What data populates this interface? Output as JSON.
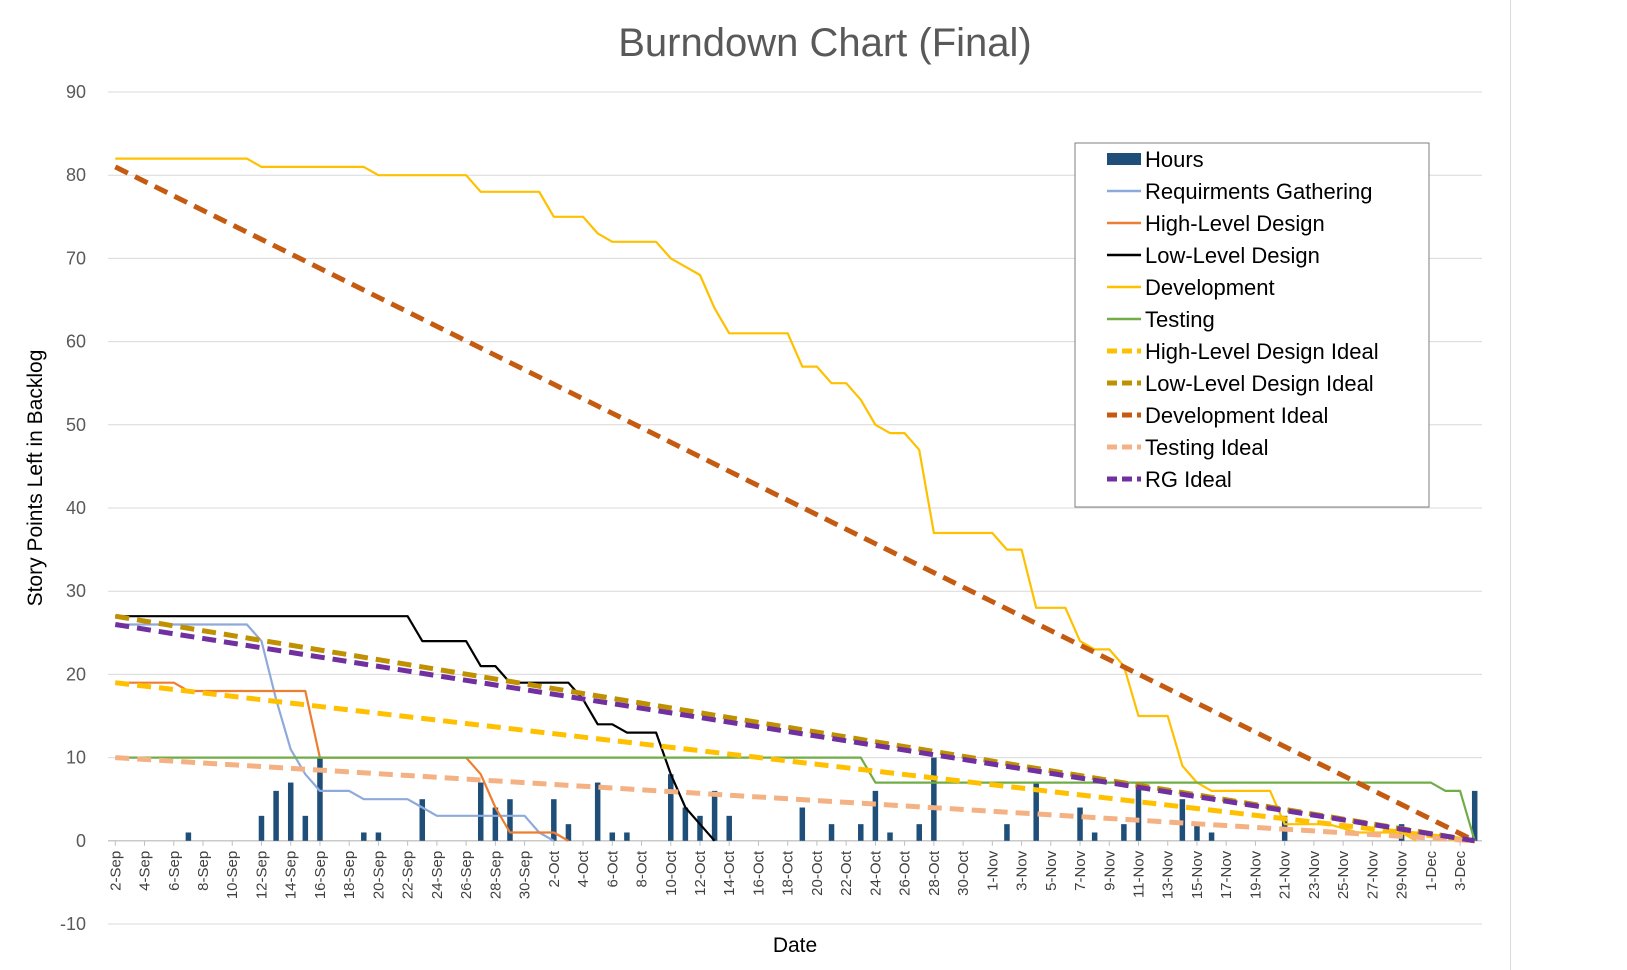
{
  "chart_data": {
    "type": "line",
    "title": "Burndown Chart (Final)",
    "xlabel": "Date",
    "ylabel": "Story Points Left in Backlog",
    "ylim": [
      -10,
      90
    ],
    "yticks": [
      -10,
      0,
      10,
      20,
      30,
      40,
      50,
      60,
      70,
      80,
      90
    ],
    "grid": true,
    "legend_position": "top-right",
    "x_start": "2-Sep",
    "x_end": "4-Dec",
    "tick_labels": [
      "2-Sep",
      "4-Sep",
      "6-Sep",
      "8-Sep",
      "10-Sep",
      "12-Sep",
      "14-Sep",
      "16-Sep",
      "18-Sep",
      "20-Sep",
      "22-Sep",
      "24-Sep",
      "26-Sep",
      "28-Sep",
      "30-Sep",
      "2-Oct",
      "4-Oct",
      "6-Oct",
      "8-Oct",
      "10-Oct",
      "12-Oct",
      "14-Oct",
      "16-Oct",
      "18-Oct",
      "20-Oct",
      "22-Oct",
      "24-Oct",
      "26-Oct",
      "28-Oct",
      "30-Oct",
      "1-Nov",
      "3-Nov",
      "5-Nov",
      "7-Nov",
      "9-Nov",
      "11-Nov",
      "13-Nov",
      "15-Nov",
      "17-Nov",
      "19-Nov",
      "21-Nov",
      "23-Nov",
      "25-Nov",
      "27-Nov",
      "29-Nov",
      "1-Dec",
      "3-Dec"
    ],
    "hours": {
      "name": "Hours",
      "color": "#1f4e79",
      "points": [
        [
          "7-Sep",
          1
        ],
        [
          "12-Sep",
          3
        ],
        [
          "13-Sep",
          6
        ],
        [
          "14-Sep",
          7
        ],
        [
          "15-Sep",
          3
        ],
        [
          "16-Sep",
          10
        ],
        [
          "19-Sep",
          1
        ],
        [
          "20-Sep",
          1
        ],
        [
          "23-Sep",
          5
        ],
        [
          "27-Sep",
          7
        ],
        [
          "28-Sep",
          4
        ],
        [
          "29-Sep",
          5
        ],
        [
          "2-Oct",
          5
        ],
        [
          "3-Oct",
          2
        ],
        [
          "5-Oct",
          7
        ],
        [
          "6-Oct",
          1
        ],
        [
          "7-Oct",
          1
        ],
        [
          "10-Oct",
          8
        ],
        [
          "11-Oct",
          4
        ],
        [
          "12-Oct",
          3
        ],
        [
          "13-Oct",
          6
        ],
        [
          "14-Oct",
          3
        ],
        [
          "19-Oct",
          4
        ],
        [
          "21-Oct",
          2
        ],
        [
          "23-Oct",
          2
        ],
        [
          "24-Oct",
          6
        ],
        [
          "25-Oct",
          1
        ],
        [
          "27-Oct",
          2
        ],
        [
          "28-Oct",
          10
        ],
        [
          "2-Nov",
          2
        ],
        [
          "4-Nov",
          7
        ],
        [
          "7-Nov",
          4
        ],
        [
          "8-Nov",
          1
        ],
        [
          "10-Nov",
          2
        ],
        [
          "11-Nov",
          7
        ],
        [
          "14-Nov",
          5
        ],
        [
          "15-Nov",
          2
        ],
        [
          "16-Nov",
          1
        ],
        [
          "21-Nov",
          3
        ],
        [
          "29-Nov",
          2
        ],
        [
          "4-Dec",
          6
        ]
      ]
    },
    "series": [
      {
        "name": "Requirments Gathering",
        "color": "#8eaadb",
        "dash": false,
        "points": [
          [
            "2-Sep",
            26
          ],
          [
            "11-Sep",
            26
          ],
          [
            "12-Sep",
            24
          ],
          [
            "13-Sep",
            17
          ],
          [
            "14-Sep",
            11
          ],
          [
            "15-Sep",
            8
          ],
          [
            "16-Sep",
            6
          ],
          [
            "18-Sep",
            6
          ],
          [
            "19-Sep",
            5
          ],
          [
            "22-Sep",
            5
          ],
          [
            "23-Sep",
            4
          ],
          [
            "24-Sep",
            3
          ],
          [
            "29-Sep",
            3
          ],
          [
            "30-Sep",
            3
          ],
          [
            "1-Oct",
            1
          ],
          [
            "2-Oct",
            0
          ]
        ]
      },
      {
        "name": "High-Level Design",
        "color": "#ed7d31",
        "dash": false,
        "points": [
          [
            "2-Sep",
            19
          ],
          [
            "6-Sep",
            19
          ],
          [
            "7-Sep",
            18
          ],
          [
            "15-Sep",
            18
          ],
          [
            "16-Sep",
            10
          ],
          [
            "26-Sep",
            10
          ],
          [
            "27-Sep",
            8
          ],
          [
            "28-Sep",
            4
          ],
          [
            "29-Sep",
            1
          ],
          [
            "2-Oct",
            1
          ],
          [
            "3-Oct",
            0
          ]
        ]
      },
      {
        "name": "Low-Level Design",
        "color": "#000000",
        "dash": false,
        "points": [
          [
            "2-Sep",
            27
          ],
          [
            "22-Sep",
            27
          ],
          [
            "23-Sep",
            24
          ],
          [
            "26-Sep",
            24
          ],
          [
            "27-Sep",
            21
          ],
          [
            "28-Sep",
            21
          ],
          [
            "29-Sep",
            19
          ],
          [
            "3-Oct",
            19
          ],
          [
            "4-Oct",
            17
          ],
          [
            "5-Oct",
            14
          ],
          [
            "6-Oct",
            14
          ],
          [
            "7-Oct",
            13
          ],
          [
            "9-Oct",
            13
          ],
          [
            "10-Oct",
            8
          ],
          [
            "11-Oct",
            4
          ],
          [
            "12-Oct",
            2
          ],
          [
            "13-Oct",
            0
          ]
        ]
      },
      {
        "name": "Development",
        "color": "#ffc000",
        "dash": false,
        "points": [
          [
            "2-Sep",
            82
          ],
          [
            "11-Sep",
            82
          ],
          [
            "12-Sep",
            81
          ],
          [
            "19-Sep",
            81
          ],
          [
            "20-Sep",
            80
          ],
          [
            "26-Sep",
            80
          ],
          [
            "27-Sep",
            78
          ],
          [
            "1-Oct",
            78
          ],
          [
            "2-Oct",
            75
          ],
          [
            "4-Oct",
            75
          ],
          [
            "5-Oct",
            73
          ],
          [
            "6-Oct",
            72
          ],
          [
            "9-Oct",
            72
          ],
          [
            "10-Oct",
            70
          ],
          [
            "11-Oct",
            69
          ],
          [
            "12-Oct",
            68
          ],
          [
            "13-Oct",
            64
          ],
          [
            "14-Oct",
            61
          ],
          [
            "18-Oct",
            61
          ],
          [
            "19-Oct",
            57
          ],
          [
            "20-Oct",
            57
          ],
          [
            "21-Oct",
            55
          ],
          [
            "22-Oct",
            55
          ],
          [
            "23-Oct",
            53
          ],
          [
            "24-Oct",
            50
          ],
          [
            "25-Oct",
            49
          ],
          [
            "26-Oct",
            49
          ],
          [
            "27-Oct",
            47
          ],
          [
            "28-Oct",
            37
          ],
          [
            "1-Nov",
            37
          ],
          [
            "2-Nov",
            35
          ],
          [
            "3-Nov",
            35
          ],
          [
            "4-Nov",
            28
          ],
          [
            "6-Nov",
            28
          ],
          [
            "7-Nov",
            24
          ],
          [
            "8-Nov",
            23
          ],
          [
            "9-Nov",
            23
          ],
          [
            "10-Nov",
            21
          ],
          [
            "11-Nov",
            15
          ],
          [
            "13-Nov",
            15
          ],
          [
            "14-Nov",
            9
          ],
          [
            "15-Nov",
            7
          ],
          [
            "16-Nov",
            6
          ],
          [
            "20-Nov",
            6
          ],
          [
            "21-Nov",
            2
          ],
          [
            "24-Nov",
            2
          ],
          [
            "26-Nov",
            1
          ],
          [
            "29-Nov",
            1
          ],
          [
            "30-Nov",
            0
          ]
        ]
      },
      {
        "name": "Testing",
        "color": "#70ad47",
        "dash": false,
        "points": [
          [
            "2-Sep",
            10
          ],
          [
            "23-Oct",
            10
          ],
          [
            "24-Oct",
            7
          ],
          [
            "1-Dec",
            7
          ],
          [
            "2-Dec",
            6
          ],
          [
            "3-Dec",
            6
          ],
          [
            "4-Dec",
            0
          ]
        ]
      },
      {
        "name": "High-Level Design Ideal",
        "color": "#ffc000",
        "dash": true,
        "points": [
          [
            "2-Sep",
            19
          ],
          [
            "4-Dec",
            0
          ]
        ]
      },
      {
        "name": "Low-Level Design Ideal",
        "color": "#bf9000",
        "dash": true,
        "points": [
          [
            "2-Sep",
            27
          ],
          [
            "4-Dec",
            0
          ]
        ]
      },
      {
        "name": "Development Ideal",
        "color": "#c55a11",
        "dash": true,
        "points": [
          [
            "2-Sep",
            81
          ],
          [
            "4-Dec",
            0
          ]
        ]
      },
      {
        "name": "Testing Ideal",
        "color": "#f4b183",
        "dash": true,
        "points": [
          [
            "2-Sep",
            10
          ],
          [
            "4-Dec",
            0
          ]
        ]
      },
      {
        "name": "RG Ideal",
        "color": "#7030a0",
        "dash": true,
        "points": [
          [
            "2-Sep",
            26
          ],
          [
            "4-Dec",
            0
          ]
        ]
      }
    ]
  }
}
